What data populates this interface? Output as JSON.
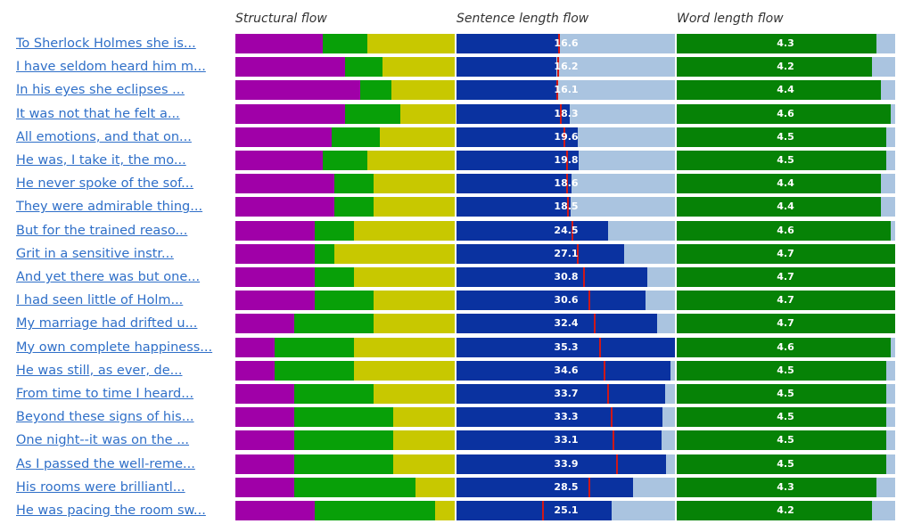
{
  "headers": {
    "structural": "Structural flow",
    "sentence": "Sentence length flow",
    "word": "Word length flow"
  },
  "colors": {
    "struct_a": "#a000a8",
    "struct_b": "#08a008",
    "struct_c": "#c8c800",
    "sentence_fill": "#0a32a0",
    "sentence_track": "#aac4e0",
    "sentence_marker": "#d01818",
    "word_fill": "#068206",
    "word_track": "#aac4e0",
    "link": "#2f6fc8"
  },
  "chart_data": {
    "type": "table",
    "rows": [
      {
        "label": "To Sherlock Holmes she is...",
        "structural": [
          0.4,
          0.2,
          0.4
        ],
        "sentence": 16.6,
        "sentence_avg": 16.6,
        "word": 4.3
      },
      {
        "label": "I have seldom heard him m...",
        "structural": [
          0.5,
          0.17,
          0.33
        ],
        "sentence": 16.2,
        "sentence_avg": 16.4,
        "word": 4.2
      },
      {
        "label": "In his eyes she eclipses ...",
        "structural": [
          0.57,
          0.14,
          0.29
        ],
        "sentence": 16.1,
        "sentence_avg": 16.3,
        "word": 4.4
      },
      {
        "label": "It was not that he felt a...",
        "structural": [
          0.5,
          0.25,
          0.25
        ],
        "sentence": 18.3,
        "sentence_avg": 16.8,
        "word": 4.6
      },
      {
        "label": "All emotions, and that on...",
        "structural": [
          0.44,
          0.22,
          0.34
        ],
        "sentence": 19.6,
        "sentence_avg": 17.4,
        "word": 4.5
      },
      {
        "label": "He was, I take it, the mo...",
        "structural": [
          0.4,
          0.2,
          0.4
        ],
        "sentence": 19.8,
        "sentence_avg": 17.8,
        "word": 4.5
      },
      {
        "label": "He never spoke of the sof...",
        "structural": [
          0.45,
          0.18,
          0.37
        ],
        "sentence": 18.6,
        "sentence_avg": 17.9,
        "word": 4.4
      },
      {
        "label": "They were admirable thing...",
        "structural": [
          0.45,
          0.18,
          0.37
        ],
        "sentence": 18.5,
        "sentence_avg": 18.0,
        "word": 4.4
      },
      {
        "label": "But for the trained reaso...",
        "structural": [
          0.36,
          0.18,
          0.46
        ],
        "sentence": 24.5,
        "sentence_avg": 18.7,
        "word": 4.6
      },
      {
        "label": "Grit in a sensitive instr...",
        "structural": [
          0.36,
          0.09,
          0.55
        ],
        "sentence": 27.1,
        "sentence_avg": 19.6,
        "word": 4.7
      },
      {
        "label": "And yet there was but one...",
        "structural": [
          0.36,
          0.18,
          0.46
        ],
        "sentence": 30.8,
        "sentence_avg": 20.6,
        "word": 4.7
      },
      {
        "label": "I had seen little of Holm...",
        "structural": [
          0.36,
          0.27,
          0.37
        ],
        "sentence": 30.6,
        "sentence_avg": 21.4,
        "word": 4.7
      },
      {
        "label": "My marriage had drifted u...",
        "structural": [
          0.27,
          0.36,
          0.37
        ],
        "sentence": 32.4,
        "sentence_avg": 22.3,
        "word": 4.7
      },
      {
        "label": "My own complete happiness...",
        "structural": [
          0.18,
          0.36,
          0.46
        ],
        "sentence": 35.3,
        "sentence_avg": 23.2,
        "word": 4.6
      },
      {
        "label": "He was still, as ever, de...",
        "structural": [
          0.18,
          0.36,
          0.46
        ],
        "sentence": 34.6,
        "sentence_avg": 23.9,
        "word": 4.5
      },
      {
        "label": "From time to time I heard...",
        "structural": [
          0.27,
          0.36,
          0.37
        ],
        "sentence": 33.7,
        "sentence_avg": 24.5,
        "word": 4.5
      },
      {
        "label": "Beyond these signs of his...",
        "structural": [
          0.27,
          0.45,
          0.28
        ],
        "sentence": 33.3,
        "sentence_avg": 25.0,
        "word": 4.5
      },
      {
        "label": "One night--it was on the ...",
        "structural": [
          0.27,
          0.45,
          0.28
        ],
        "sentence": 33.1,
        "sentence_avg": 25.4,
        "word": 4.5
      },
      {
        "label": "As I passed the well-reme...",
        "structural": [
          0.27,
          0.45,
          0.28
        ],
        "sentence": 33.9,
        "sentence_avg": 25.9,
        "word": 4.5
      },
      {
        "label": "His rooms were brilliantl...",
        "structural": [
          0.27,
          0.55,
          0.18
        ],
        "sentence": 28.5,
        "sentence_avg": 21.5,
        "word": 4.3
      },
      {
        "label": "He was pacing the room sw...",
        "structural": [
          0.36,
          0.55,
          0.09
        ],
        "sentence": 25.1,
        "sentence_avg": 14.0,
        "word": 4.2
      }
    ],
    "sentence_max": 35.3,
    "word_max": 4.7
  }
}
